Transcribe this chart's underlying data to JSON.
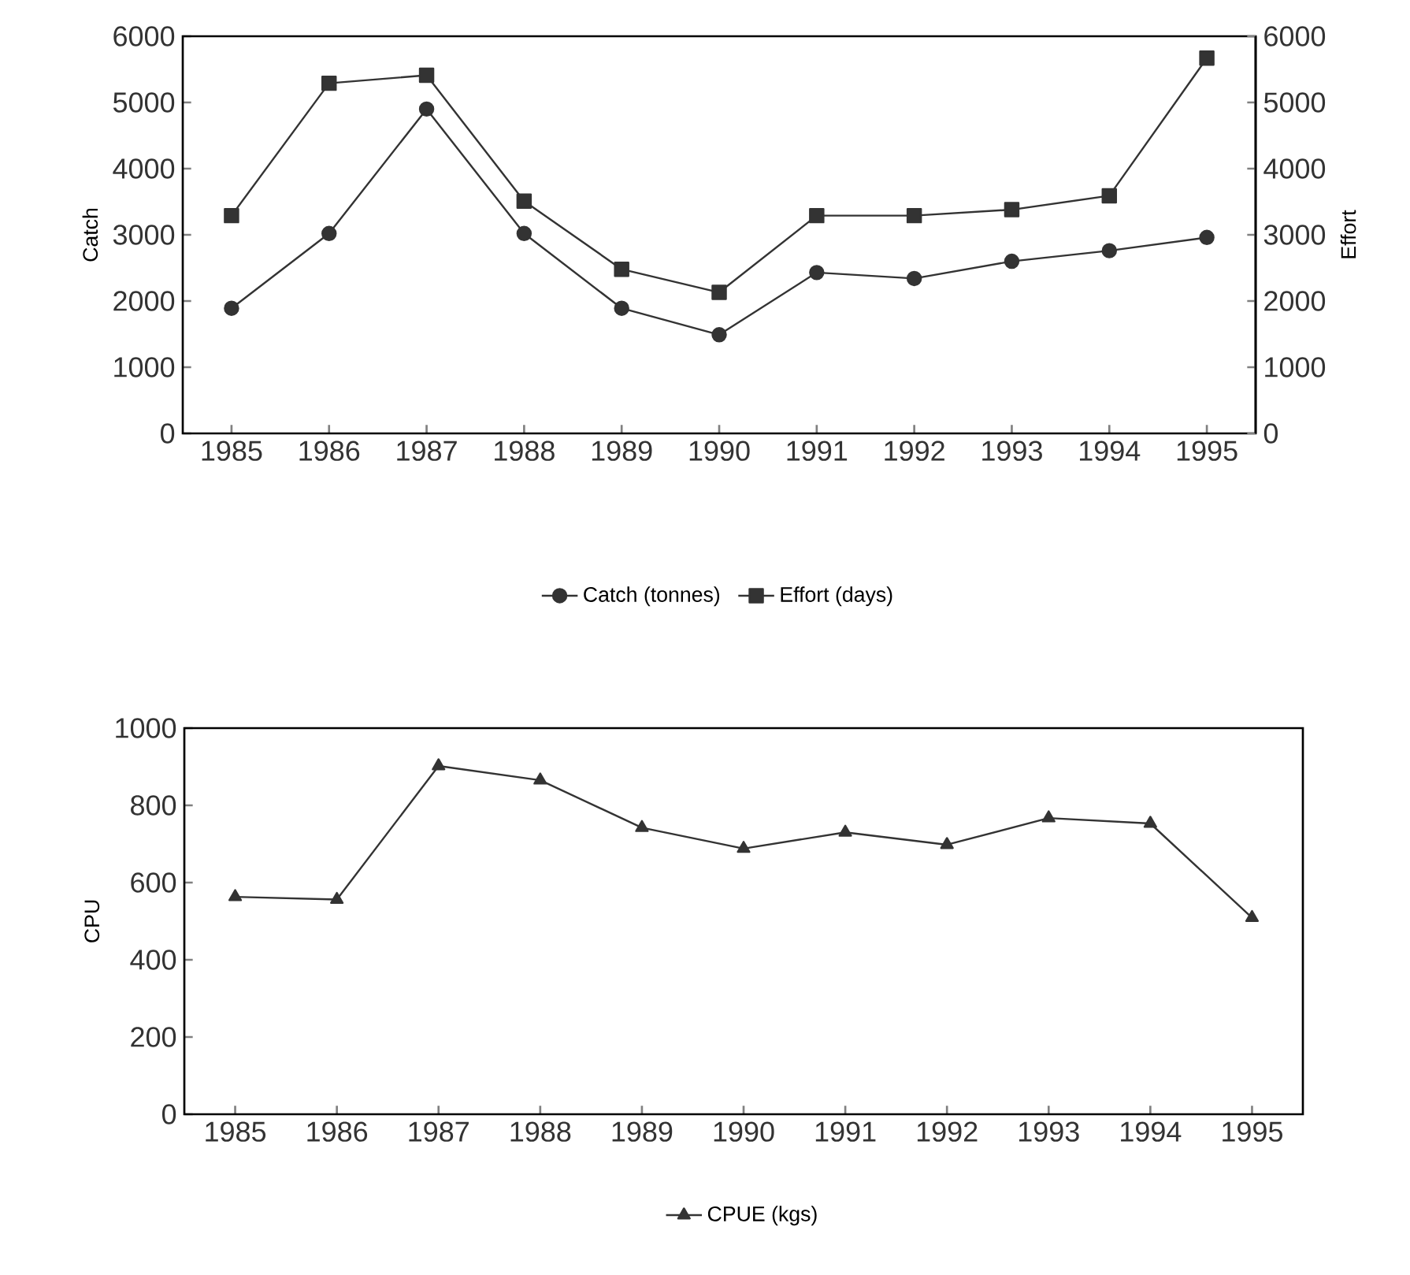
{
  "chart_data": [
    {
      "type": "line",
      "categories": [
        "1985",
        "1986",
        "1987",
        "1988",
        "1989",
        "1990",
        "1991",
        "1992",
        "1993",
        "1994",
        "1995"
      ],
      "ylabel": "Catch",
      "y2label": "Effort",
      "ylim": [
        0,
        6000
      ],
      "yticks": [
        0,
        1000,
        2000,
        3000,
        4000,
        5000,
        6000
      ],
      "y2lim": [
        0,
        6000
      ],
      "y2ticks": [
        0,
        1000,
        2000,
        3000,
        4000,
        5000,
        6000
      ],
      "legend": "bottom",
      "line_style": "solid",
      "series": [
        {
          "name": "Catch (tonnes)",
          "color": "#333333",
          "marker": "circle",
          "values": [
            1890,
            3020,
            4900,
            3020,
            1890,
            1490,
            2430,
            2340,
            2600,
            2760,
            2960
          ]
        },
        {
          "name": "Effort (days)",
          "color": "#333333",
          "marker": "square",
          "axis": "y2",
          "values": [
            3290,
            5290,
            5410,
            3510,
            2480,
            2130,
            3290,
            3290,
            3380,
            3590,
            5670
          ]
        }
      ]
    },
    {
      "type": "line",
      "categories": [
        "1985",
        "1986",
        "1987",
        "1988",
        "1989",
        "1990",
        "1991",
        "1992",
        "1993",
        "1994",
        "1995"
      ],
      "ylabel": "CPU",
      "ylim": [
        0,
        1000
      ],
      "yticks": [
        0,
        200,
        400,
        600,
        800,
        1000
      ],
      "legend": "bottom",
      "line_style": "solid",
      "series": [
        {
          "name": "CPUE (kgs)",
          "color": "#333333",
          "marker": "triangle",
          "values": [
            563,
            556,
            902,
            865,
            742,
            688,
            730,
            698,
            767,
            753,
            509
          ]
        }
      ]
    }
  ]
}
